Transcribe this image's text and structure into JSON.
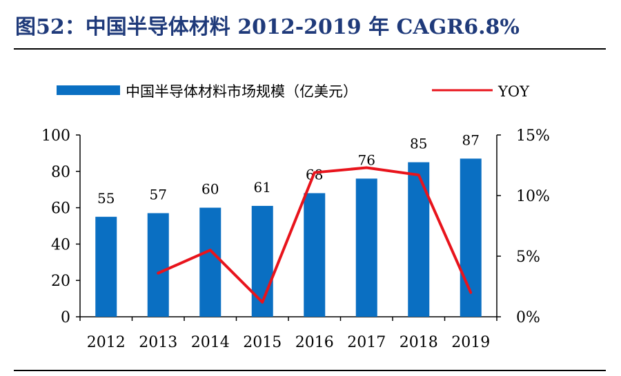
{
  "figure": {
    "title": "图52：中国半导体材料 2012-2019 年 CAGR6.8%"
  },
  "colors": {
    "bar": "#0a6fc2",
    "line": "#e8141c",
    "title": "#1f3a7a"
  },
  "chart_data": {
    "type": "bar",
    "categories": [
      "2012",
      "2013",
      "2014",
      "2015",
      "2016",
      "2017",
      "2018",
      "2019"
    ],
    "series": [
      {
        "name": "中国半导体材料市场规模（亿美元）",
        "type": "bar",
        "axis": "left",
        "values": [
          55,
          57,
          60,
          61,
          68,
          76,
          85,
          87
        ],
        "labels": [
          "55",
          "57",
          "60",
          "61",
          "68",
          "76",
          "85",
          "87"
        ]
      },
      {
        "name": "YOY",
        "type": "line",
        "axis": "right",
        "values": [
          null,
          3.6,
          5.5,
          1.2,
          11.9,
          12.3,
          11.7,
          2.0
        ]
      }
    ],
    "y_left": {
      "lim": [
        0,
        100
      ],
      "ticks": [
        "0",
        "20",
        "40",
        "60",
        "80",
        "100"
      ]
    },
    "y_right": {
      "lim": [
        0,
        15
      ],
      "ticks": [
        "0%",
        "5%",
        "10%",
        "15%"
      ]
    },
    "legend": "top"
  }
}
